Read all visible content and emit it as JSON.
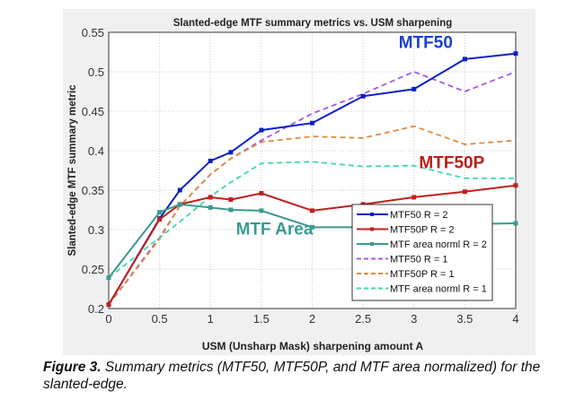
{
  "chart_data": {
    "type": "line",
    "title": "Slanted-edge MTF summary metrics vs. USM sharpening",
    "xlabel": "USM (Unsharp Mask) sharpening amount A",
    "ylabel": "Slanted-edge MTF summary metric",
    "xlim": [
      0,
      4
    ],
    "ylim": [
      0.2,
      0.55
    ],
    "xticks": [
      "0",
      "0.5",
      "1",
      "1.5",
      "2",
      "2.5",
      "3",
      "3.5",
      "4"
    ],
    "yticks": [
      "0.2",
      "0.25",
      "0.3",
      "0.35",
      "0.4",
      "0.45",
      "0.5",
      "0.55"
    ],
    "grid": true,
    "legend_position": "bottom-right",
    "x": [
      0,
      0.5,
      0.7,
      1,
      1.2,
      1.5,
      2,
      2.5,
      3,
      3.5,
      4
    ],
    "series": [
      {
        "name": "MTF50 R = 2",
        "color": "#0a1fc4",
        "style": "solid",
        "markers": true,
        "values": [
          0.205,
          0.314,
          0.35,
          0.387,
          0.398,
          0.426,
          0.435,
          0.469,
          0.478,
          0.516,
          0.523
        ]
      },
      {
        "name": "MTF50P R = 2",
        "color": "#c0201c",
        "style": "solid",
        "markers": true,
        "values": [
          0.205,
          0.313,
          0.332,
          0.341,
          0.338,
          0.346,
          0.324,
          0.332,
          0.341,
          0.348,
          0.356
        ]
      },
      {
        "name": "MTF area norml R = 2",
        "color": "#3a9a92",
        "style": "solid",
        "markers": true,
        "values": [
          0.239,
          0.322,
          0.332,
          0.328,
          0.325,
          0.324,
          0.303,
          0.303,
          0.305,
          0.307,
          0.308
        ]
      },
      {
        "name": "MTF50 R = 1",
        "color": "#a05ee0",
        "style": "dashed",
        "markers": false,
        "values": [
          0.205,
          0.29,
          0.33,
          0.37,
          0.39,
          0.413,
          0.447,
          0.472,
          0.5,
          0.475,
          0.5
        ]
      },
      {
        "name": "MTF50P R = 1",
        "color": "#e08a40",
        "style": "dashed",
        "markers": false,
        "values": [
          0.205,
          0.288,
          0.33,
          0.37,
          0.39,
          0.411,
          0.418,
          0.416,
          0.431,
          0.408,
          0.413
        ]
      },
      {
        "name": "MTF area norml R = 1",
        "color": "#40d8b0",
        "style": "dashed",
        "markers": false,
        "values": [
          0.239,
          0.29,
          0.31,
          0.342,
          0.36,
          0.384,
          0.386,
          0.38,
          0.381,
          0.365,
          0.365
        ]
      }
    ],
    "annotations": [
      {
        "text": "MTF50",
        "color": "#1a3fd8",
        "x": 2.85,
        "y": 0.53
      },
      {
        "text": "MTF50P",
        "color": "#b8201c",
        "x": 3.05,
        "y": 0.378
      },
      {
        "text": "MTF Area",
        "color": "#3a9a92",
        "x": 1.25,
        "y": 0.294
      }
    ]
  },
  "caption": {
    "label": "Figure 3.",
    "text": " Summary metrics (MTF50, MTF50P, and MTF area normalized) for the slanted-edge."
  }
}
